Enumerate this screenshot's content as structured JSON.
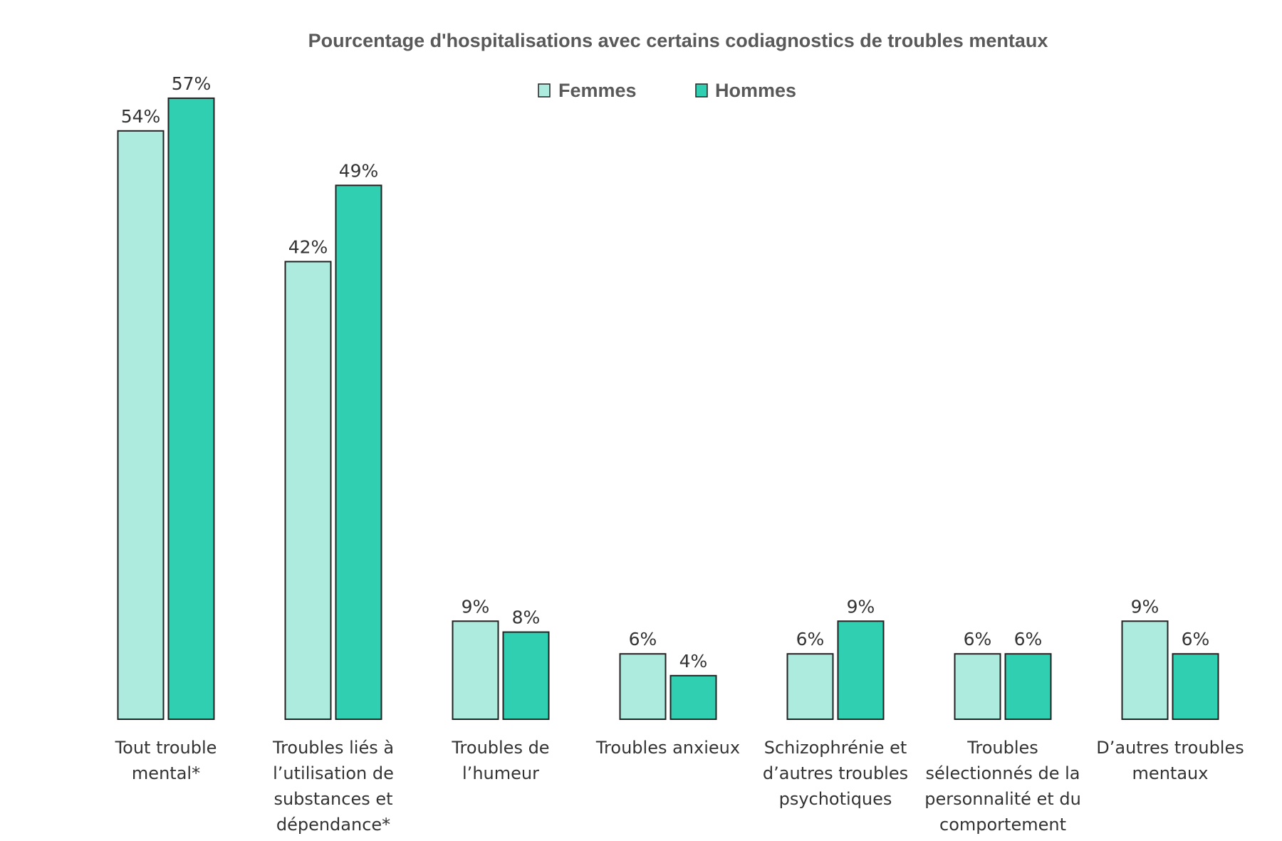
{
  "chart_data": {
    "type": "bar",
    "title": "Pourcentage d'hospitalisations avec certains codiagnostics de troubles mentaux",
    "categories": [
      [
        "Tout trouble",
        "mental*"
      ],
      [
        "Troubles liés à",
        "l’utilisation de",
        "substances et",
        "dépendance*"
      ],
      [
        "Troubles de",
        "l’humeur"
      ],
      [
        "Troubles anxieux"
      ],
      [
        "Schizophrénie et",
        "d’autres troubles",
        "psychotiques"
      ],
      [
        "Troubles",
        "sélectionnés de la",
        "personnalité et du",
        "comportement"
      ],
      [
        "D’autres troubles",
        "mentaux"
      ]
    ],
    "series": [
      {
        "name": "Femmes",
        "color": "#ADEBDF",
        "values": [
          54,
          42,
          9,
          6,
          6,
          6,
          9
        ],
        "labels": [
          "54%",
          "42%",
          "9%",
          "6%",
          "6%",
          "6%",
          "9%"
        ]
      },
      {
        "name": "Hommes",
        "color": "#30CFB2",
        "values": [
          57,
          49,
          8,
          4,
          9,
          6,
          6
        ],
        "labels": [
          "57%",
          "49%",
          "8%",
          "4%",
          "9%",
          "6%",
          "6%"
        ]
      }
    ],
    "ylim": [
      0,
      60
    ],
    "grid": false,
    "legend": "top-center"
  }
}
